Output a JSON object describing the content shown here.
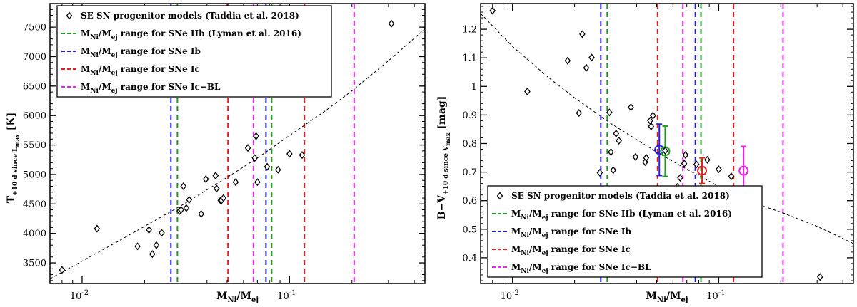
{
  "charts": [
    {
      "id": "left",
      "ytitle": {
        "main": "T",
        "sub": "+10 d since L",
        "subsub": "max",
        "unit": "[K]"
      },
      "xtitle": {
        "main": "M",
        "sub1": "Ni",
        "mid": "/M",
        "sub2": "ej"
      },
      "yticks": [
        "3500",
        "4000",
        "4500",
        "5000",
        "5500",
        "6000",
        "6500",
        "7000",
        "7500"
      ],
      "xticks": [
        {
          "base": "10",
          "exp": "-2"
        },
        {
          "base": "10",
          "exp": "-1"
        }
      ],
      "legend": [
        {
          "kind": "marker",
          "text": "SE SN progenitor models (Taddia et al. 2018)"
        },
        {
          "kind": "line",
          "color": "green",
          "pre": "M",
          "s1": "Ni",
          "mid": "/M",
          "s2": "ej",
          "post": " range for SNe IIb (Lyman et al. 2016)"
        },
        {
          "kind": "line",
          "color": "blue",
          "pre": "M",
          "s1": "Ni",
          "mid": "/M",
          "s2": "ej",
          "post": " range for SNe Ib"
        },
        {
          "kind": "line",
          "color": "red",
          "pre": "M",
          "s1": "Ni",
          "mid": "/M",
          "s2": "ej",
          "post": " range for SNe Ic"
        },
        {
          "kind": "line",
          "color": "magenta",
          "pre": "M",
          "s1": "Ni",
          "mid": "/M",
          "s2": "ej",
          "post": " range for SNe Ic−BL"
        }
      ]
    },
    {
      "id": "right",
      "ytitle": {
        "main": "B−V",
        "sub": "+10 d since V",
        "subsub": "max",
        "unit": "[mag]"
      },
      "xtitle": {
        "main": "M",
        "sub1": "Ni",
        "mid": "/M",
        "sub2": "ej"
      },
      "yticks": [
        "0.4",
        "0.5",
        "0.6",
        "0.7",
        "0.8",
        "0.9",
        "1",
        "1.1",
        "1.2"
      ],
      "xticks": [
        {
          "base": "10",
          "exp": "-2"
        },
        {
          "base": "10",
          "exp": "-1"
        }
      ],
      "legend": [
        {
          "kind": "marker",
          "text": "SE SN progenitor models (Taddia et al. 2018)"
        },
        {
          "kind": "line",
          "color": "green",
          "pre": "M",
          "s1": "Ni",
          "mid": "/M",
          "s2": "ej",
          "post": " range for SNe IIb (Lyman et al. 2016)"
        },
        {
          "kind": "line",
          "color": "blue",
          "pre": "M",
          "s1": "Ni",
          "mid": "/M",
          "s2": "ej",
          "post": " range for SNe Ib"
        },
        {
          "kind": "line",
          "color": "red",
          "pre": "M",
          "s1": "Ni",
          "mid": "/M",
          "s2": "ej",
          "post": " range for SNe Ic"
        },
        {
          "kind": "line",
          "color": "magenta",
          "pre": "M",
          "s1": "Ni",
          "mid": "/M",
          "s2": "ej",
          "post": " range for SNe Ic−BL"
        }
      ]
    }
  ],
  "colors": {
    "green": "#1f9a1f",
    "blue": "#2020dd",
    "red": "#e02020",
    "magenta": "#ee22ee",
    "black": "#000000"
  },
  "chart_data": [
    {
      "type": "scatter",
      "xscale": "log",
      "xlim": [
        0.007,
        0.45
      ],
      "ylim": [
        3150,
        7900
      ],
      "x": [
        0.008,
        0.0118,
        0.0185,
        0.021,
        0.0218,
        0.0228,
        0.0242,
        0.0295,
        0.03,
        0.0308,
        0.0318,
        0.0328,
        0.0375,
        0.0395,
        0.044,
        0.0445,
        0.0465,
        0.047,
        0.048,
        0.055,
        0.063,
        0.068,
        0.069,
        0.07,
        0.078,
        0.088,
        0.1,
        0.115,
        0.31
      ],
      "y": [
        3380,
        4080,
        3780,
        4060,
        3650,
        3800,
        4010,
        4380,
        4400,
        4800,
        4430,
        4570,
        4330,
        4920,
        4980,
        4760,
        4560,
        4560,
        4600,
        4870,
        5450,
        5280,
        5650,
        4870,
        5130,
        5080,
        5350,
        5330,
        7560
      ],
      "fit_curve": {
        "style": "dashed",
        "x": [
          0.007,
          0.01,
          0.015,
          0.02,
          0.03,
          0.05,
          0.07,
          0.1,
          0.15,
          0.2,
          0.3,
          0.45
        ],
        "y": [
          3230,
          3530,
          3870,
          4120,
          4470,
          4950,
          5280,
          5660,
          6090,
          6420,
          6930,
          7470
        ]
      },
      "vlines": [
        {
          "color": "green",
          "x": [
            0.0288,
            0.082
          ]
        },
        {
          "color": "blue",
          "x": [
            0.0268,
            0.077
          ]
        },
        {
          "color": "red",
          "x": [
            0.0505,
            0.118
          ]
        },
        {
          "color": "magenta",
          "x": [
            0.067,
            0.205
          ]
        }
      ]
    },
    {
      "type": "scatter",
      "xscale": "log",
      "xlim": [
        0.007,
        0.45
      ],
      "ylim": [
        0.31,
        1.29
      ],
      "x": [
        0.008,
        0.0118,
        0.0185,
        0.021,
        0.0218,
        0.0228,
        0.0242,
        0.0265,
        0.0295,
        0.03,
        0.0308,
        0.0318,
        0.0328,
        0.0375,
        0.0395,
        0.044,
        0.0445,
        0.0465,
        0.047,
        0.048,
        0.055,
        0.063,
        0.065,
        0.068,
        0.069,
        0.07,
        0.078,
        0.088,
        0.1,
        0.115,
        0.31
      ],
      "y": [
        1.265,
        0.982,
        1.09,
        0.907,
        1.183,
        1.065,
        1.101,
        0.698,
        0.909,
        0.77,
        0.707,
        0.835,
        0.81,
        0.927,
        0.753,
        0.735,
        0.75,
        0.88,
        0.86,
        0.898,
        0.775,
        0.648,
        0.68,
        0.73,
        0.76,
        0.63,
        0.727,
        0.743,
        0.71,
        0.685,
        0.333
      ],
      "fit_curve": {
        "style": "dashed",
        "x": [
          0.007,
          0.01,
          0.015,
          0.02,
          0.03,
          0.05,
          0.07,
          0.1,
          0.15,
          0.2,
          0.3,
          0.45
        ],
        "y": [
          1.255,
          1.14,
          1.03,
          0.96,
          0.87,
          0.77,
          0.71,
          0.65,
          0.59,
          0.56,
          0.51,
          0.45
        ]
      },
      "vlines": [
        {
          "color": "green",
          "x": [
            0.0288,
            0.082
          ]
        },
        {
          "color": "blue",
          "x": [
            0.0268,
            0.077
          ]
        },
        {
          "color": "red",
          "x": [
            0.0505,
            0.118
          ]
        },
        {
          "color": "magenta",
          "x": [
            0.067,
            0.205
          ]
        }
      ],
      "error_points": [
        {
          "color": "blue",
          "x": 0.0515,
          "y": 0.778,
          "err": 0.09
        },
        {
          "color": "green",
          "x": 0.055,
          "y": 0.773,
          "err": 0.088
        },
        {
          "color": "red",
          "x": 0.083,
          "y": 0.705,
          "err": 0.045
        },
        {
          "color": "magenta",
          "x": 0.132,
          "y": 0.705,
          "err": 0.085
        }
      ]
    }
  ]
}
